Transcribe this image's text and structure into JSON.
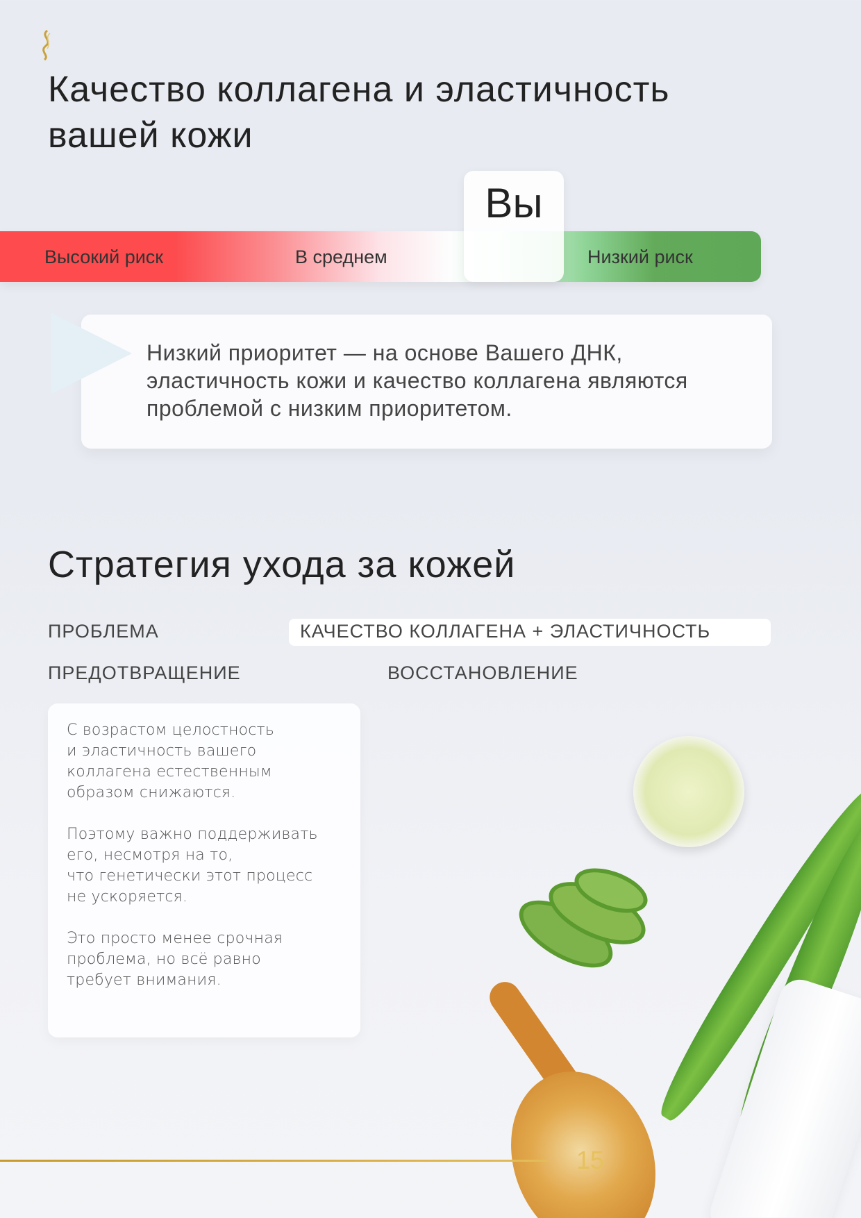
{
  "header": {
    "logo_icon": "dna-helix-icon",
    "title": "Качество коллагена и эластичность вашей кожи"
  },
  "risk_scale": {
    "labels": [
      "Высокий риск",
      "В среднем",
      "Низкий риск"
    ],
    "marker_label": "Вы",
    "marker_position": "between average and low risk",
    "colors": {
      "high": "#fd4b4e",
      "average": "#fdfdfd",
      "low": "#5ea857"
    }
  },
  "callout": {
    "text": "Низкий приоритет — на основе Вашего ДНК, эластичность кожи и качество коллагена являются проблемой с низким приоритетом."
  },
  "strategy": {
    "title": "Стратегия ухода за кожей",
    "problem_label": "ПРОБЛЕМА",
    "problem_value": "КАЧЕСТВО КОЛЛАГЕНА + ЭЛАСТИЧНОСТЬ",
    "prevention_label": "ПРЕДОТВРАЩЕНИЕ",
    "recovery_label": "ВОССТАНОВЛЕНИЕ",
    "prevention_paragraphs": [
      "С возрастом целостность\nи эластичность вашего\nколлагена естественным\nобразом снижаются.",
      "Поэтому важно поддерживать\nего, несмотря на то,\nчто генетически этот процесс\nне ускоряется.",
      "Это просто менее срочная\nпроблема, но всё равно\nтребует внимания."
    ]
  },
  "footer": {
    "page_number": "15",
    "accent": "#c79a2a"
  }
}
